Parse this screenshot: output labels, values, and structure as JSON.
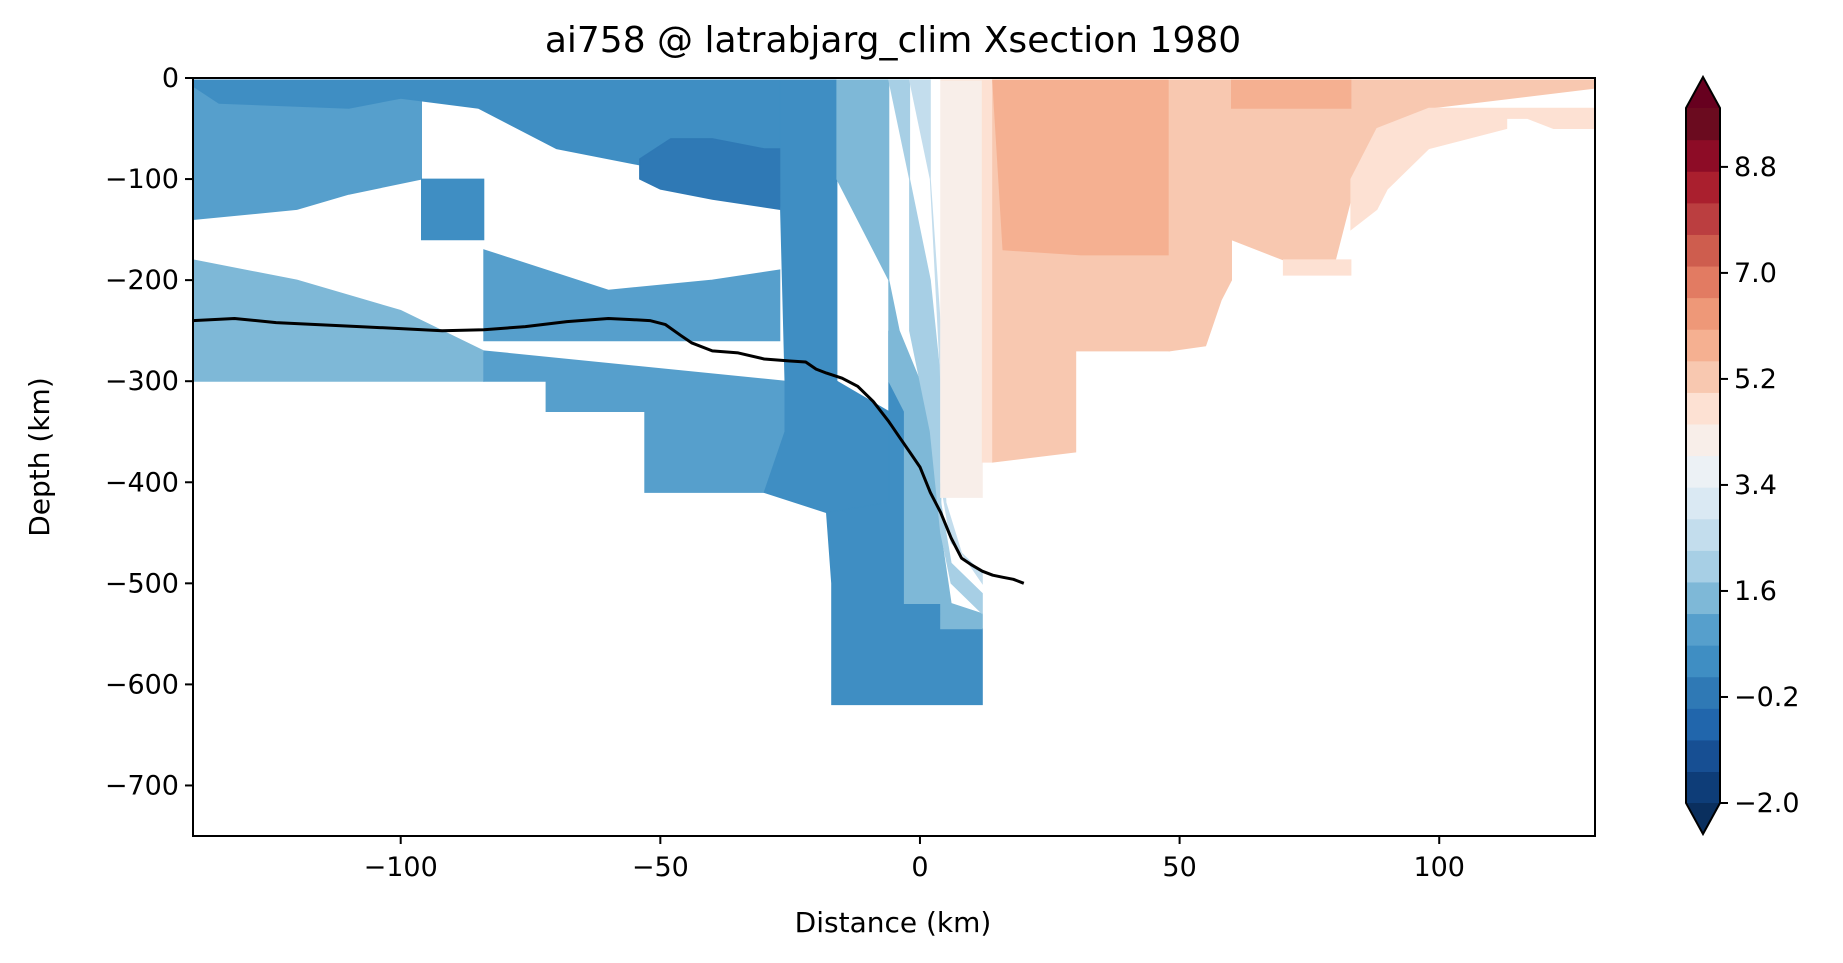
{
  "chart_data": {
    "type": "heatmap",
    "title": "ai758 @ latrabjarg_clim Xsection 1980",
    "xlabel": "Distance (km)",
    "ylabel": "Depth (km)",
    "xlim": [
      -140,
      130
    ],
    "ylim": [
      -750,
      0
    ],
    "x_ticks": [
      -100,
      -50,
      0,
      50,
      100
    ],
    "x_tick_labels": [
      "−100",
      "−50",
      "0",
      "50",
      "100"
    ],
    "y_ticks": [
      0,
      -100,
      -200,
      -300,
      -400,
      -500,
      -600,
      -700
    ],
    "y_tick_labels": [
      "0",
      "−100",
      "−200",
      "−300",
      "−400",
      "−500",
      "−600",
      "−700"
    ],
    "grid": false,
    "colorbar": {
      "levels_min": -2.0,
      "levels_max": 9.8,
      "step": 0.6,
      "extend": "both",
      "ticks": [
        -2.0,
        -0.2,
        1.6,
        3.4,
        5.2,
        7.0,
        8.8
      ],
      "tick_labels": [
        "−2.0",
        "−0.2",
        "1.6",
        "3.4",
        "5.2",
        "7.0",
        "8.8"
      ],
      "colors": [
        "#0e3d78",
        "#174f93",
        "#2166ac",
        "#2f79b5",
        "#3f8ec3",
        "#569fcc",
        "#7eb8d7",
        "#a7cfe5",
        "#c3dded",
        "#dae9f3",
        "#ecf1f5",
        "#f8eee9",
        "#fde1d3",
        "#f8c8b0",
        "#f5b091",
        "#ee9878",
        "#e27b62",
        "#ce5d4e",
        "#bb3e40",
        "#aa1f2e",
        "#8d0c26",
        "#6b0b1f"
      ],
      "under_color": "#0a2f5e",
      "over_color": "#67001f"
    },
    "bands": [
      {
        "value": 1.6,
        "points": [
          [
            -140,
            -2
          ],
          [
            -140,
            -300
          ],
          [
            -84,
            -300
          ],
          [
            -84,
            -270
          ],
          [
            -140,
            -240
          ]
        ]
      },
      {
        "value": 1.0,
        "points": [
          [
            -84,
            -300
          ],
          [
            -72,
            -300
          ],
          [
            -72,
            -330
          ],
          [
            -53,
            -330
          ],
          [
            -53,
            -410
          ],
          [
            -30,
            -410
          ],
          [
            -26,
            -350
          ],
          [
            -26,
            -300
          ],
          [
            -84,
            -270
          ]
        ]
      },
      {
        "value": 1.6,
        "points": [
          [
            -140,
            -2
          ],
          [
            -140,
            -240
          ],
          [
            -84,
            -270
          ],
          [
            -100,
            -230
          ],
          [
            -120,
            -200
          ],
          [
            -140,
            -180
          ]
        ]
      },
      {
        "value": 1.0,
        "points": [
          [
            -140,
            -2
          ],
          [
            -140,
            -140
          ],
          [
            -120,
            -130
          ],
          [
            -110,
            -115
          ],
          [
            -96,
            -100
          ],
          [
            -96,
            -2
          ]
        ]
      },
      {
        "value": 0.4,
        "points": [
          [
            -140,
            -2
          ],
          [
            -140,
            -8
          ],
          [
            -135,
            -25
          ],
          [
            -110,
            -30
          ],
          [
            -100,
            -20
          ],
          [
            -85,
            -30
          ],
          [
            -70,
            -70
          ],
          [
            -50,
            -90
          ],
          [
            -30,
            -100
          ],
          [
            -27,
            -100
          ],
          [
            -27,
            -2
          ]
        ]
      },
      {
        "value": 1.0,
        "points": [
          [
            -84,
            -170
          ],
          [
            -60,
            -210
          ],
          [
            -40,
            -200
          ],
          [
            -27,
            -190
          ],
          [
            -27,
            -260
          ],
          [
            -84,
            -260
          ]
        ]
      },
      {
        "value": 0.4,
        "points": [
          [
            -96,
            -100
          ],
          [
            -84,
            -100
          ],
          [
            -84,
            -160
          ],
          [
            -96,
            -160
          ]
        ]
      },
      {
        "value": 0.4,
        "points": [
          [
            -27,
            -100
          ],
          [
            -27,
            -2
          ],
          [
            -16,
            -2
          ],
          [
            -16,
            -300
          ],
          [
            -6,
            -330
          ],
          [
            -6,
            -420
          ],
          [
            -18,
            -430
          ],
          [
            -30,
            -410
          ],
          [
            -26,
            -350
          ],
          [
            -26,
            -300
          ]
        ]
      },
      {
        "value": -0.2,
        "points": [
          [
            -54,
            -80
          ],
          [
            -48,
            -60
          ],
          [
            -40,
            -60
          ],
          [
            -30,
            -70
          ],
          [
            -27,
            -70
          ],
          [
            -27,
            -130
          ],
          [
            -40,
            -120
          ],
          [
            -50,
            -110
          ],
          [
            -54,
            -100
          ]
        ]
      },
      {
        "value": 0.4,
        "points": [
          [
            -18,
            -430
          ],
          [
            -6,
            -420
          ],
          [
            -6,
            -330
          ],
          [
            -6,
            -250
          ],
          [
            -3,
            -300
          ],
          [
            -3,
            -520
          ],
          [
            4,
            -520
          ],
          [
            4,
            -545
          ],
          [
            12,
            -545
          ],
          [
            12,
            -620
          ],
          [
            -17,
            -620
          ],
          [
            -17,
            -500
          ],
          [
            -18,
            -430
          ]
        ]
      },
      {
        "value": 1.6,
        "points": [
          [
            -16,
            -2
          ],
          [
            -6,
            -2
          ],
          [
            -6,
            -300
          ],
          [
            -3,
            -330
          ],
          [
            -3,
            -520
          ],
          [
            4,
            -520
          ],
          [
            4,
            -545
          ],
          [
            12,
            -545
          ],
          [
            12,
            -530
          ],
          [
            6,
            -520
          ],
          [
            4,
            -450
          ],
          [
            4,
            -380
          ],
          [
            0,
            -300
          ],
          [
            -4,
            -250
          ],
          [
            -6,
            -200
          ],
          [
            -16,
            -100
          ]
        ]
      },
      {
        "value": 2.2,
        "points": [
          [
            -6,
            -2
          ],
          [
            -2,
            -2
          ],
          [
            -2,
            -250
          ],
          [
            2,
            -350
          ],
          [
            4,
            -450
          ],
          [
            6,
            -500
          ],
          [
            12,
            -530
          ],
          [
            12,
            -510
          ],
          [
            6,
            -480
          ],
          [
            4,
            -420
          ],
          [
            4,
            -300
          ],
          [
            2,
            -200
          ],
          [
            -2,
            -100
          ]
        ]
      },
      {
        "value": 2.8,
        "points": [
          [
            -2,
            -2
          ],
          [
            2,
            -2
          ],
          [
            2,
            -100
          ],
          [
            3,
            -200
          ],
          [
            4,
            -300
          ],
          [
            5,
            -420
          ],
          [
            8,
            -470
          ],
          [
            12,
            -500
          ],
          [
            12,
            -490
          ],
          [
            6,
            -460
          ],
          [
            4,
            -400
          ],
          [
            4,
            -250
          ],
          [
            2,
            -100
          ]
        ]
      },
      {
        "value": 4.6,
        "points": [
          [
            4,
            -2
          ],
          [
            12,
            -2
          ],
          [
            12,
            -100
          ],
          [
            12,
            -300
          ],
          [
            12,
            -415
          ],
          [
            4,
            -415
          ],
          [
            4,
            -300
          ],
          [
            4,
            -100
          ]
        ]
      },
      {
        "value": 5.2,
        "points": [
          [
            4,
            -2
          ],
          [
            12,
            -2
          ],
          [
            12,
            -380
          ],
          [
            14,
            -380
          ],
          [
            14,
            -2
          ]
        ]
      },
      {
        "value": 5.8,
        "points": [
          [
            14,
            -2
          ],
          [
            30,
            -2
          ],
          [
            30,
            -370
          ],
          [
            14,
            -380
          ]
        ]
      },
      {
        "value": 5.8,
        "points": [
          [
            30,
            -2
          ],
          [
            48,
            -2
          ],
          [
            48,
            -175
          ],
          [
            48,
            -240
          ],
          [
            30,
            -240
          ]
        ]
      },
      {
        "value": 6.4,
        "points": [
          [
            14,
            -2
          ],
          [
            48,
            -2
          ],
          [
            48,
            -175
          ],
          [
            31,
            -175
          ],
          [
            16,
            -170
          ]
        ]
      },
      {
        "value": 5.8,
        "points": [
          [
            48,
            -2
          ],
          [
            60,
            -2
          ],
          [
            60,
            -200
          ],
          [
            48,
            -240
          ],
          [
            30,
            -240
          ],
          [
            30,
            -265
          ],
          [
            48,
            -240
          ]
        ]
      },
      {
        "value": 5.8,
        "points": [
          [
            30,
            -240
          ],
          [
            48,
            -240
          ],
          [
            48,
            -270
          ],
          [
            30,
            -270
          ]
        ]
      },
      {
        "value": 5.8,
        "points": [
          [
            48,
            -2
          ],
          [
            83,
            -2
          ],
          [
            83,
            -120
          ],
          [
            80,
            -180
          ],
          [
            70,
            -180
          ],
          [
            60,
            -160
          ],
          [
            60,
            -200
          ],
          [
            48,
            -240
          ],
          [
            48,
            -270
          ],
          [
            55,
            -265
          ],
          [
            58,
            -220
          ],
          [
            60,
            -200
          ]
        ]
      },
      {
        "value": 5.8,
        "points": [
          [
            83,
            -2
          ],
          [
            130,
            -2
          ],
          [
            130,
            -10
          ],
          [
            98,
            -30
          ],
          [
            88,
            -50
          ],
          [
            83,
            -100
          ]
        ]
      },
      {
        "value": 5.2,
        "points": [
          [
            70,
            -180
          ],
          [
            83,
            -180
          ],
          [
            83,
            -195
          ],
          [
            70,
            -195
          ]
        ]
      },
      {
        "value": 5.2,
        "points": [
          [
            98,
            -30
          ],
          [
            130,
            -30
          ],
          [
            130,
            -50
          ],
          [
            122,
            -50
          ],
          [
            117,
            -40
          ],
          [
            113,
            -40
          ],
          [
            113,
            -50
          ],
          [
            98,
            -70
          ],
          [
            90,
            -110
          ],
          [
            88,
            -130
          ],
          [
            83,
            -150
          ],
          [
            83,
            -100
          ],
          [
            88,
            -50
          ]
        ]
      },
      {
        "value": 6.4,
        "points": [
          [
            60,
            -2
          ],
          [
            83,
            -2
          ],
          [
            83,
            -30
          ],
          [
            60,
            -30
          ]
        ]
      }
    ],
    "line": {
      "x": [
        -140,
        -132,
        -124,
        -116,
        -108,
        -100,
        -92,
        -84,
        -76,
        -68,
        -60,
        -56,
        -52,
        -49,
        -46,
        -44,
        -40,
        -35,
        -30,
        -25,
        -22,
        -20,
        -18,
        -15,
        -12,
        -9,
        -6,
        -4,
        -2,
        0,
        2,
        4,
        6,
        8,
        10,
        12,
        14,
        16,
        18,
        20
      ],
      "y": [
        -240,
        -238,
        -242,
        -244,
        -246,
        -248,
        -250,
        -249,
        -246,
        -241,
        -238,
        -239,
        -240,
        -244,
        -255,
        -262,
        -270,
        -272,
        -278,
        -280,
        -281,
        -288,
        -292,
        -297,
        -305,
        -320,
        -340,
        -355,
        -370,
        -385,
        -410,
        -430,
        -455,
        -475,
        -482,
        -488,
        -492,
        -494,
        -496,
        -500
      ]
    }
  }
}
